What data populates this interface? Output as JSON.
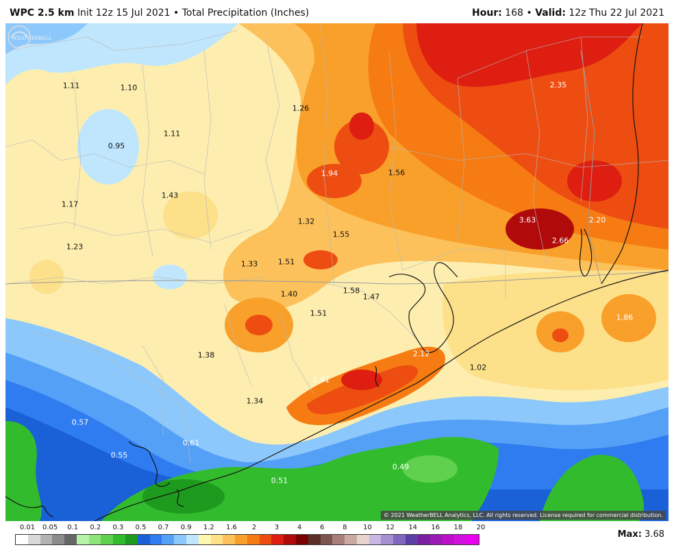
{
  "header": {
    "model": "WPC 2.5 km",
    "init": "Init 12z 15 Jul 2021",
    "bullet": "•",
    "product": "Total Precipitation (Inches)",
    "hour_label": "Hour:",
    "hour_value": "168",
    "valid_label": "Valid:",
    "valid_value": "12z Thu 22 Jul 2021"
  },
  "map": {
    "copyright": "© 2021 WeatherBELL Analytics, LLC. All rights reserved. License required for commercial distribution.",
    "logo": "WEATHERBELL",
    "values": [
      {
        "id": "v1",
        "text": "1.11"
      },
      {
        "id": "v2",
        "text": "1.10"
      },
      {
        "id": "v3",
        "text": "1.26"
      },
      {
        "id": "v4",
        "text": "2.35"
      },
      {
        "id": "v5",
        "text": "0.95"
      },
      {
        "id": "v6",
        "text": "1.11"
      },
      {
        "id": "v7",
        "text": "1.94"
      },
      {
        "id": "v8",
        "text": "1.56"
      },
      {
        "id": "v9",
        "text": "1.17"
      },
      {
        "id": "v10",
        "text": "1.43"
      },
      {
        "id": "v11",
        "text": "1.32"
      },
      {
        "id": "v12",
        "text": "3.63"
      },
      {
        "id": "v13",
        "text": "2.20"
      },
      {
        "id": "v14",
        "text": "1.55"
      },
      {
        "id": "v15",
        "text": "2.66"
      },
      {
        "id": "v16",
        "text": "1.23"
      },
      {
        "id": "v17",
        "text": "1.33"
      },
      {
        "id": "v18",
        "text": "1.51"
      },
      {
        "id": "v19",
        "text": "1.58"
      },
      {
        "id": "v20",
        "text": "1.40"
      },
      {
        "id": "v21",
        "text": "1.47"
      },
      {
        "id": "v22",
        "text": "1.51"
      },
      {
        "id": "v23",
        "text": "1.86"
      },
      {
        "id": "v24",
        "text": "1.38"
      },
      {
        "id": "v25",
        "text": "2.12"
      },
      {
        "id": "v26",
        "text": "1.02"
      },
      {
        "id": "v27",
        "text": "1.91"
      },
      {
        "id": "v28",
        "text": "1.34"
      },
      {
        "id": "v29",
        "text": "0.57"
      },
      {
        "id": "v30",
        "text": "0.61"
      },
      {
        "id": "v31",
        "text": "0.55"
      },
      {
        "id": "v32",
        "text": "0.49"
      },
      {
        "id": "v33",
        "text": "0.51"
      }
    ]
  },
  "legend": {
    "ticks": [
      "0.01",
      "0.05",
      "0.1",
      "0.2",
      "0.3",
      "0.5",
      "0.7",
      "0.9",
      "1.2",
      "1.6",
      "2",
      "3",
      "4",
      "6",
      "8",
      "10",
      "12",
      "14",
      "16",
      "18",
      "20"
    ],
    "colors": [
      "#ffffff",
      "#d9d9d9",
      "#b3b3b3",
      "#8c8c8c",
      "#666666",
      "#b6f5a8",
      "#8de57a",
      "#5fd14e",
      "#33bb2e",
      "#1e9a1e",
      "#1a60d6",
      "#2f7cf0",
      "#55a0f7",
      "#8cc8fb",
      "#bfe6fd",
      "#fff6b0",
      "#fde08a",
      "#fcc15a",
      "#f9a02a",
      "#f57b12",
      "#ee4d12",
      "#dd1e10",
      "#b00a0a",
      "#7a0000",
      "#5a2f2a",
      "#7d5550",
      "#a77f78",
      "#c9aaa3",
      "#e6d3ce",
      "#c9b8e4",
      "#a690d2",
      "#8068bf",
      "#5c3fa6",
      "#7b1fa2",
      "#9a1ab5",
      "#bb10c8",
      "#d010dc",
      "#ea00f0"
    ],
    "max_label": "Max:",
    "max_value": "3.68"
  }
}
